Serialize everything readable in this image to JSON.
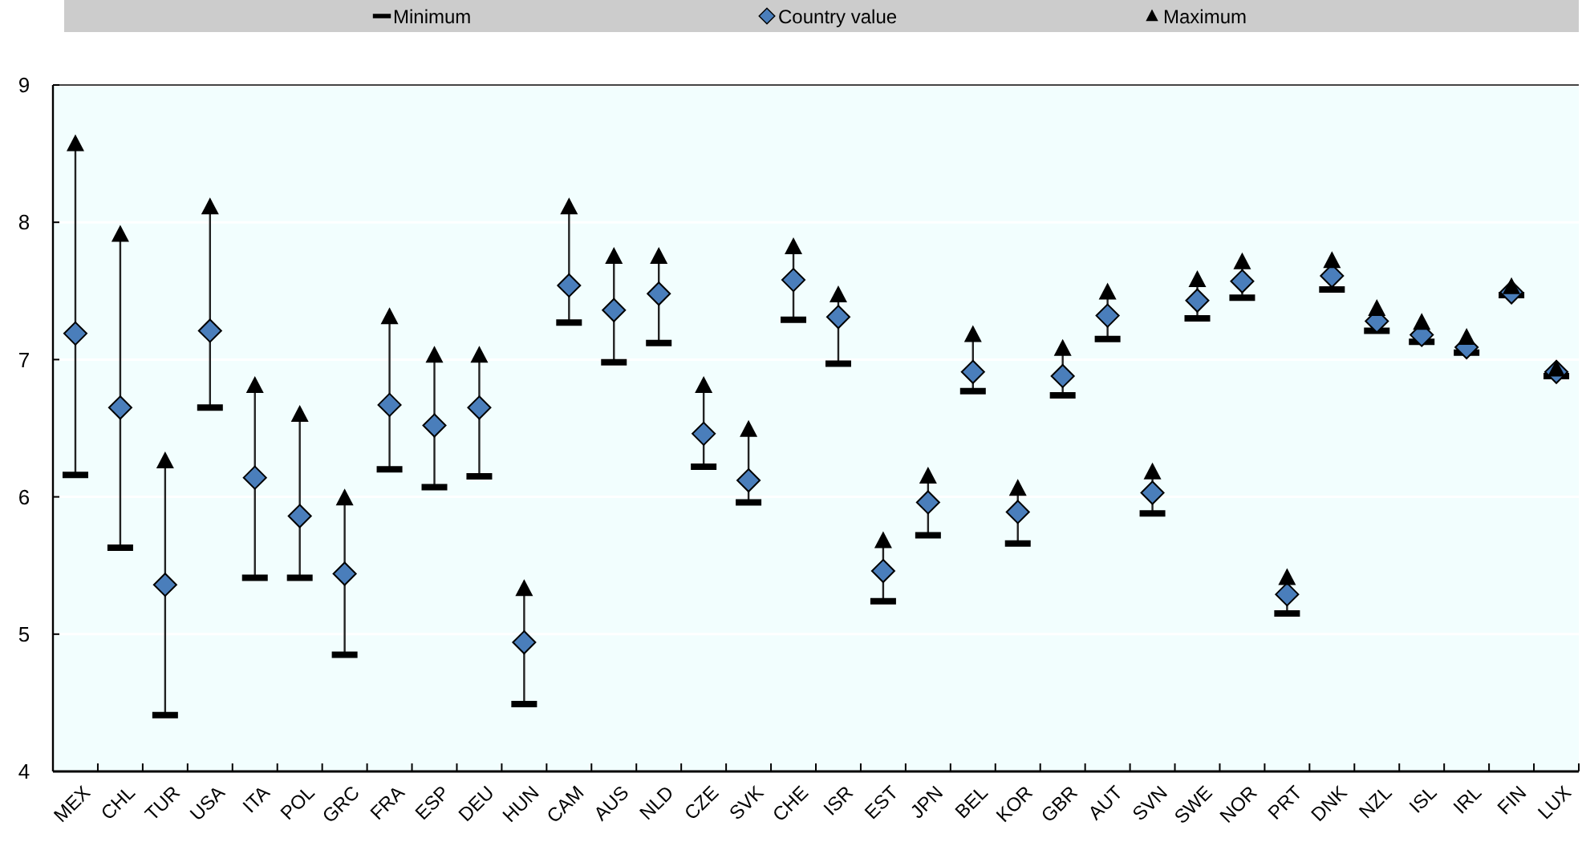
{
  "chart_data": {
    "type": "scatter",
    "categories": [
      "MEX",
      "CHL",
      "TUR",
      "USA",
      "ITA",
      "POL",
      "GRC",
      "FRA",
      "ESP",
      "DEU",
      "HUN",
      "CAM",
      "AUS",
      "NLD",
      "CZE",
      "SVK",
      "CHE",
      "ISR",
      "EST",
      "JPN",
      "BEL",
      "KOR",
      "GBR",
      "AUT",
      "SVN",
      "SWE",
      "NOR",
      "PRT",
      "DNK",
      "NZL",
      "ISL",
      "IRL",
      "FIN",
      "LUX"
    ],
    "series": [
      {
        "name": "Minimum",
        "color": "#000000",
        "values": [
          6.16,
          5.63,
          4.41,
          6.65,
          5.41,
          5.41,
          4.85,
          6.2,
          6.07,
          6.15,
          4.49,
          7.27,
          6.98,
          7.12,
          6.22,
          5.96,
          7.29,
          6.97,
          5.24,
          5.72,
          6.77,
          5.66,
          6.74,
          7.15,
          5.88,
          7.3,
          7.45,
          5.15,
          7.51,
          7.21,
          7.13,
          7.05,
          7.47,
          6.88
        ]
      },
      {
        "name": "Country value",
        "color": "#4a7ebb",
        "marker": "diamond",
        "values": [
          7.19,
          6.65,
          5.36,
          7.21,
          6.14,
          5.86,
          5.44,
          6.67,
          6.52,
          6.65,
          4.94,
          7.54,
          7.36,
          7.48,
          6.46,
          6.12,
          7.58,
          7.31,
          5.46,
          5.96,
          6.91,
          5.89,
          6.88,
          7.32,
          6.03,
          7.43,
          7.57,
          5.29,
          7.61,
          7.28,
          7.18,
          7.09,
          7.49,
          6.91
        ]
      },
      {
        "name": "Maximum",
        "color": "#000000",
        "marker": "triangle",
        "values": [
          8.57,
          7.91,
          6.26,
          8.11,
          6.81,
          6.6,
          5.99,
          7.31,
          7.03,
          7.03,
          5.33,
          8.11,
          7.75,
          7.75,
          6.81,
          6.49,
          7.82,
          7.47,
          5.68,
          6.15,
          7.18,
          6.06,
          7.08,
          7.49,
          6.18,
          7.58,
          7.71,
          5.41,
          7.72,
          7.37,
          7.27,
          7.16,
          7.53,
          6.93
        ]
      }
    ],
    "ylim": [
      4,
      9
    ],
    "yticks": [
      4,
      5,
      6,
      7,
      8,
      9
    ],
    "grid": "y",
    "legend": "top"
  }
}
